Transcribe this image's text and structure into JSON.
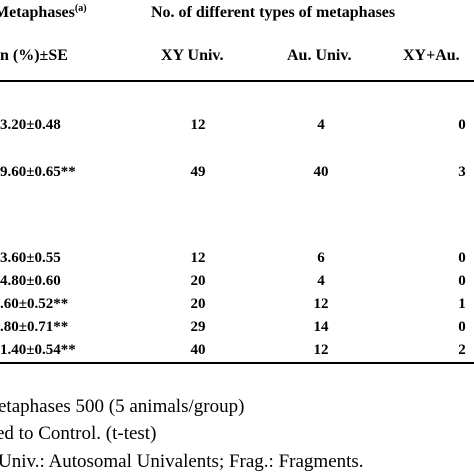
{
  "header": {
    "group_title": "Metaphases",
    "group_title_sup": "(a)",
    "types_title": "No. of different types of metaphases",
    "mean_col": "n (%)±SE",
    "col_xy": "XY Univ.",
    "col_au": "Au. Univ.",
    "col_xyau": "XY+Au."
  },
  "rows": [
    {
      "mean": "3.20±0.48",
      "xy": "12",
      "au": "4",
      "xyau": "0"
    },
    {
      "mean": "9.60±0.65**",
      "xy": "49",
      "au": "40",
      "xyau": "3"
    },
    {
      "mean": "3.60±0.55",
      "xy": "12",
      "au": "6",
      "xyau": "0"
    },
    {
      "mean": "4.80±0.60",
      "xy": "20",
      "au": "4",
      "xyau": "0"
    },
    {
      "mean": ".60±0.52**",
      "xy": "20",
      "au": "12",
      "xyau": "1"
    },
    {
      "mean": ".80±0.71**",
      "xy": "29",
      "au": "14",
      "xyau": "0"
    },
    {
      "mean": "1.40±0.54**",
      "xy": "40",
      "au": "12",
      "xyau": "2"
    }
  ],
  "footnotes": [
    "etaphases 500 (5 animals/group)",
    "ed to Control. (t-test)",
    "Univ.: Autosomal Univalents; Frag.: Fragments."
  ]
}
